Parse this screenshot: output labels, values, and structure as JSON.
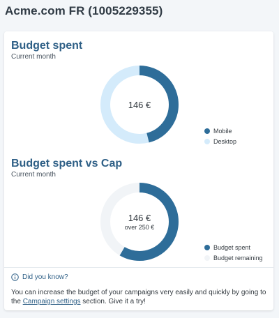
{
  "page": {
    "title": "Acme.com FR (1005229355)"
  },
  "colors": {
    "primary": "#2e6d99",
    "light": "#d4ebfb",
    "remaining": "#f1f4f7",
    "heading": "#2e5f86"
  },
  "budget_spent": {
    "title": "Budget spent",
    "subtitle": "Current month",
    "center_value": "146 €",
    "slices": [
      {
        "label": "Mobile",
        "fraction": 0.46,
        "color": "#2e6d99"
      },
      {
        "label": "Desktop",
        "fraction": 0.54,
        "color": "#d4ebfb"
      }
    ]
  },
  "budget_vs_cap": {
    "title": "Budget spent vs Cap",
    "subtitle": "Current month",
    "center_value": "146 €",
    "center_caption": "over 250 €",
    "slices": [
      {
        "label": "Budget spent",
        "fraction": 0.584,
        "color": "#2e6d99"
      },
      {
        "label": "Budget remaining",
        "fraction": 0.416,
        "color": "#f1f4f7"
      }
    ]
  },
  "tip": {
    "heading": "Did you know?",
    "text_before": "You can increase the budget of your campaigns very easily and quickly by going to the ",
    "link_label": "Campaign settings",
    "text_after": " section. Give it a try!"
  }
}
